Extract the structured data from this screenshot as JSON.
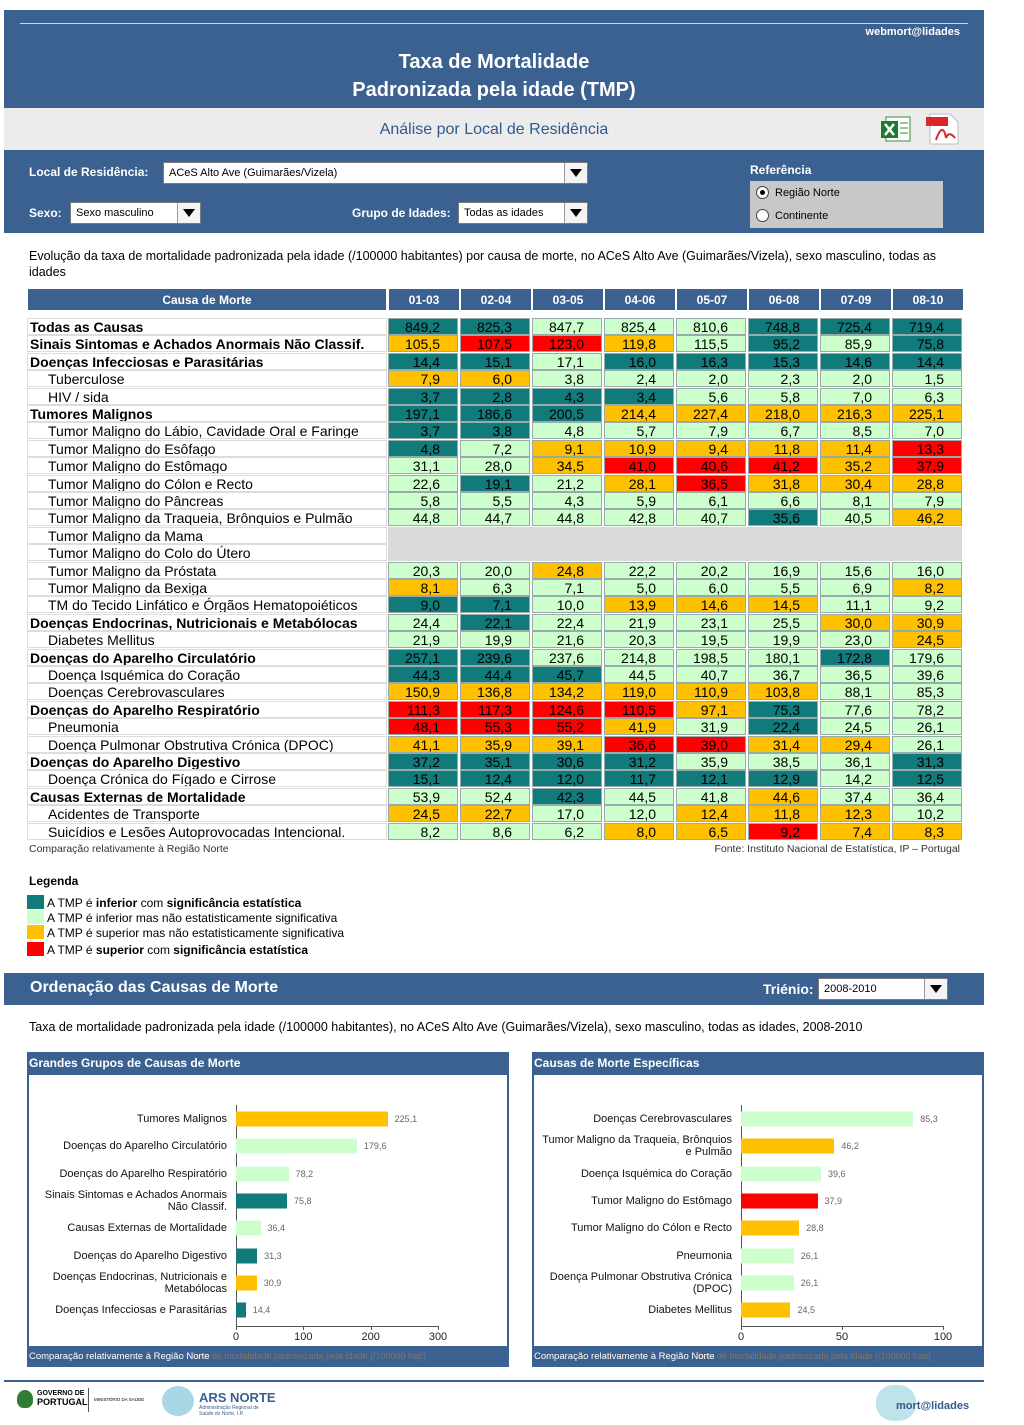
{
  "header": {
    "email": "webmort@lidades",
    "title_line1": "Taxa de Mortalidade",
    "title_line2": "Padronizada pela idade (TMP)",
    "subtitle": "Análise por Local de Residência"
  },
  "filters": {
    "local_label": "Local de Residência:",
    "local_value": "ACeS Alto Ave (Guimarães/Vizela)",
    "sexo_label": "Sexo:",
    "sexo_value": "Sexo masculino",
    "idades_label": "Grupo de Idades:",
    "idades_value": "Todas as idades",
    "referencia_label": "Referência",
    "referencia_options": [
      {
        "label": "Região Norte",
        "checked": true
      },
      {
        "label": "Continente",
        "checked": false
      }
    ]
  },
  "table": {
    "description": "Evolução da taxa de mortalidade padronizada pela idade (/100000 habitantes) por causa de morte, no ACeS Alto Ave (Guimarães/Vizela), sexo masculino, todas as idades",
    "header": [
      "Causa de Morte",
      "01-03",
      "02-04",
      "03-05",
      "04-06",
      "05-07",
      "06-08",
      "07-09",
      "08-10"
    ],
    "rows": [
      {
        "name": "Todas as Causas",
        "values": [
          "849,2",
          "825,3",
          "847,7",
          "825,4",
          "810,6",
          "748,8",
          "725,4",
          "719,4"
        ],
        "colors": [
          "#117a7a",
          "#117a7a",
          "#ccffcc",
          "#ccffcc",
          "#ccffcc",
          "#117a7a",
          "#117a7a",
          "#117a7a"
        ]
      },
      {
        "name": "Sinais Sintomas e Achados Anormais Não Classif.",
        "values": [
          "105,5",
          "107,5",
          "123,0",
          "119,8",
          "115,5",
          "95,2",
          "85,9",
          "75,8"
        ],
        "colors": [
          "#ffc000",
          "#ff0000",
          "#ff0000",
          "#ffc000",
          "#ccffcc",
          "#117a7a",
          "#ccffcc",
          "#117a7a"
        ]
      },
      {
        "name": "Doenças Infecciosas e Parasitárias",
        "values": [
          "14,4",
          "15,1",
          "17,1",
          "16,0",
          "16,3",
          "15,3",
          "14,6",
          "14,4"
        ],
        "colors": [
          "#117a7a",
          "#117a7a",
          "#ccffcc",
          "#117a7a",
          "#117a7a",
          "#117a7a",
          "#117a7a",
          "#117a7a"
        ],
        "children": [
          {
            "name": "Tuberculose",
            "values": [
              "7,9",
              "6,0",
              "3,8",
              "2,4",
              "2,0",
              "2,3",
              "2,0",
              "1,5"
            ],
            "colors": [
              "#ffc000",
              "#ffc000",
              "#ccffcc",
              "#ccffcc",
              "#ccffcc",
              "#ccffcc",
              "#ccffcc",
              "#ccffcc"
            ]
          },
          {
            "name": "HIV / sida",
            "values": [
              "3,7",
              "2,8",
              "4,3",
              "3,4",
              "5,6",
              "5,8",
              "7,0",
              "6,3"
            ],
            "colors": [
              "#117a7a",
              "#117a7a",
              "#117a7a",
              "#117a7a",
              "#ccffcc",
              "#ccffcc",
              "#ccffcc",
              "#ccffcc"
            ]
          }
        ]
      },
      {
        "name": "Tumores Malignos",
        "values": [
          "197,1",
          "186,6",
          "200,5",
          "214,4",
          "227,4",
          "218,0",
          "216,3",
          "225,1"
        ],
        "colors": [
          "#117a7a",
          "#117a7a",
          "#117a7a",
          "#ffc000",
          "#ffc000",
          "#ffc000",
          "#ffc000",
          "#ffc000"
        ],
        "children": [
          {
            "name": "Tumor Maligno do Lábio, Cavidade Oral e Faringe",
            "values": [
              "3,7",
              "3,8",
              "4,8",
              "5,7",
              "7,9",
              "6,7",
              "8,5",
              "7,0"
            ],
            "colors": [
              "#117a7a",
              "#117a7a",
              "#ccffcc",
              "#ccffcc",
              "#ccffcc",
              "#ccffcc",
              "#ccffcc",
              "#ccffcc"
            ]
          },
          {
            "name": "Tumor Maligno do Esôfago",
            "values": [
              "4,8",
              "7,2",
              "9,1",
              "10,9",
              "9,4",
              "11,8",
              "11,4",
              "13,3"
            ],
            "colors": [
              "#117a7a",
              "#ccffcc",
              "#ffc000",
              "#ffc000",
              "#ffc000",
              "#ffc000",
              "#ffc000",
              "#ff0000"
            ]
          },
          {
            "name": "Tumor Maligno do Estômago",
            "values": [
              "31,1",
              "28,0",
              "34,5",
              "41,0",
              "40,6",
              "41,2",
              "35,2",
              "37,9"
            ],
            "colors": [
              "#ccffcc",
              "#ccffcc",
              "#ffc000",
              "#ff0000",
              "#ff0000",
              "#ff0000",
              "#ffc000",
              "#ff0000"
            ]
          },
          {
            "name": "Tumor Maligno do Cólon e Recto",
            "values": [
              "22,6",
              "19,1",
              "21,2",
              "28,1",
              "36,5",
              "31,8",
              "30,4",
              "28,8"
            ],
            "colors": [
              "#ccffcc",
              "#117a7a",
              "#ccffcc",
              "#ffc000",
              "#ff0000",
              "#ffc000",
              "#ffc000",
              "#ffc000"
            ]
          },
          {
            "name": "Tumor Maligno do Pâncreas",
            "values": [
              "5,8",
              "5,5",
              "4,3",
              "5,9",
              "6,1",
              "6,6",
              "8,1",
              "7,9"
            ],
            "colors": [
              "#ccffcc",
              "#ccffcc",
              "#ccffcc",
              "#ccffcc",
              "#ccffcc",
              "#ccffcc",
              "#ccffcc",
              "#ccffcc"
            ]
          },
          {
            "name": "Tumor Maligno da Traqueia, Brônquios e Pulmão",
            "values": [
              "44,8",
              "44,7",
              "44,8",
              "42,8",
              "40,7",
              "35,6",
              "40,5",
              "46,2"
            ],
            "colors": [
              "#ccffcc",
              "#ccffcc",
              "#ccffcc",
              "#ccffcc",
              "#ccffcc",
              "#117a7a",
              "#ccffcc",
              "#ffc000"
            ]
          },
          {
            "name": "Tumor Maligno da Mama",
            "values": [
              null,
              null,
              null,
              null,
              null,
              null,
              null,
              null
            ]
          },
          {
            "name": "Tumor Maligno do Colo do Útero",
            "values": [
              null,
              null,
              null,
              null,
              null,
              null,
              null,
              null
            ]
          },
          {
            "name": "Tumor Maligno da Próstata",
            "values": [
              "20,3",
              "20,0",
              "24,8",
              "22,2",
              "20,2",
              "16,9",
              "15,6",
              "16,0"
            ],
            "colors": [
              "#ccffcc",
              "#ccffcc",
              "#ffc000",
              "#ccffcc",
              "#ccffcc",
              "#ccffcc",
              "#ccffcc",
              "#ccffcc"
            ]
          },
          {
            "name": "Tumor Maligno da Bexiga",
            "values": [
              "8,1",
              "6,3",
              "7,1",
              "5,0",
              "6,0",
              "5,5",
              "6,9",
              "8,2"
            ],
            "colors": [
              "#ffc000",
              "#ccffcc",
              "#ccffcc",
              "#ccffcc",
              "#ccffcc",
              "#ccffcc",
              "#ccffcc",
              "#ffc000"
            ]
          },
          {
            "name": "TM do Tecido Linfático e Órgãos Hematopoiéticos",
            "values": [
              "9,0",
              "7,1",
              "10,0",
              "13,9",
              "14,6",
              "14,5",
              "11,1",
              "9,2"
            ],
            "colors": [
              "#117a7a",
              "#117a7a",
              "#ccffcc",
              "#ffc000",
              "#ffc000",
              "#ffc000",
              "#ccffcc",
              "#ccffcc"
            ]
          }
        ]
      },
      {
        "name": "Doenças Endocrinas, Nutricionais e Metabólocas",
        "values": [
          "24,4",
          "22,1",
          "22,4",
          "21,9",
          "23,1",
          "25,5",
          "30,0",
          "30,9"
        ],
        "colors": [
          "#ccffcc",
          "#117a7a",
          "#ccffcc",
          "#ccffcc",
          "#ccffcc",
          "#ccffcc",
          "#ffc000",
          "#ffc000"
        ],
        "children": [
          {
            "name": "Diabetes Mellitus",
            "values": [
              "21,9",
              "19,9",
              "21,6",
              "20,3",
              "19,5",
              "19,9",
              "23,0",
              "24,5"
            ],
            "colors": [
              "#ccffcc",
              "#ccffcc",
              "#ccffcc",
              "#ccffcc",
              "#ccffcc",
              "#ccffcc",
              "#ccffcc",
              "#ffc000"
            ]
          }
        ]
      },
      {
        "name": "Doenças do Aparelho Circulatório",
        "values": [
          "257,1",
          "239,6",
          "237,6",
          "214,8",
          "198,5",
          "180,1",
          "172,8",
          "179,6"
        ],
        "colors": [
          "#117a7a",
          "#117a7a",
          "#ccffcc",
          "#ccffcc",
          "#ccffcc",
          "#ccffcc",
          "#117a7a",
          "#ccffcc"
        ],
        "children": [
          {
            "name": "Doença Isquémica do Coração",
            "values": [
              "44,3",
              "44,4",
              "45,7",
              "44,5",
              "40,7",
              "36,7",
              "36,5",
              "39,6"
            ],
            "colors": [
              "#117a7a",
              "#117a7a",
              "#117a7a",
              "#ccffcc",
              "#ccffcc",
              "#ccffcc",
              "#ccffcc",
              "#ccffcc"
            ]
          },
          {
            "name": "Doenças Cerebrovasculares",
            "values": [
              "150,9",
              "136,8",
              "134,2",
              "119,0",
              "110,9",
              "103,8",
              "88,1",
              "85,3"
            ],
            "colors": [
              "#ffc000",
              "#ffc000",
              "#ffc000",
              "#ffc000",
              "#ffc000",
              "#ffc000",
              "#ccffcc",
              "#ccffcc"
            ]
          }
        ]
      },
      {
        "name": "Doenças do Aparelho Respiratório",
        "values": [
          "111,3",
          "117,3",
          "124,6",
          "110,5",
          "97,1",
          "75,3",
          "77,6",
          "78,2"
        ],
        "colors": [
          "#ff0000",
          "#ff0000",
          "#ff0000",
          "#ff0000",
          "#ffc000",
          "#117a7a",
          "#ccffcc",
          "#ccffcc"
        ],
        "children": [
          {
            "name": "Pneumonia",
            "values": [
              "48,1",
              "55,3",
              "55,2",
              "41,9",
              "31,9",
              "22,4",
              "24,5",
              "26,1"
            ],
            "colors": [
              "#ff0000",
              "#ff0000",
              "#ff0000",
              "#ffc000",
              "#ccffcc",
              "#117a7a",
              "#ccffcc",
              "#ccffcc"
            ]
          },
          {
            "name": "Doença Pulmonar Obstrutiva Crónica (DPOC)",
            "values": [
              "41,1",
              "35,9",
              "39,1",
              "36,6",
              "39,0",
              "31,4",
              "29,4",
              "26,1"
            ],
            "colors": [
              "#ffc000",
              "#ffc000",
              "#ffc000",
              "#ff0000",
              "#ff0000",
              "#ffc000",
              "#ffc000",
              "#ccffcc"
            ]
          }
        ]
      },
      {
        "name": "Doenças do Aparelho Digestivo",
        "values": [
          "37,2",
          "35,1",
          "30,6",
          "31,2",
          "35,9",
          "38,5",
          "36,1",
          "31,3"
        ],
        "colors": [
          "#117a7a",
          "#117a7a",
          "#117a7a",
          "#117a7a",
          "#ccffcc",
          "#ccffcc",
          "#ccffcc",
          "#117a7a"
        ],
        "children": [
          {
            "name": "Doença Crónica do Fígado e Cirrose",
            "values": [
              "15,1",
              "12,4",
              "12,0",
              "11,7",
              "12,1",
              "12,9",
              "14,2",
              "12,5"
            ],
            "colors": [
              "#117a7a",
              "#117a7a",
              "#117a7a",
              "#117a7a",
              "#117a7a",
              "#117a7a",
              "#ccffcc",
              "#117a7a"
            ]
          }
        ]
      },
      {
        "name": "Causas Externas de Mortalidade",
        "values": [
          "53,9",
          "52,4",
          "42,3",
          "44,5",
          "41,8",
          "44,6",
          "37,4",
          "36,4"
        ],
        "colors": [
          "#ccffcc",
          "#ccffcc",
          "#117a7a",
          "#ccffcc",
          "#ccffcc",
          "#ffc000",
          "#ccffcc",
          "#ccffcc"
        ],
        "children": [
          {
            "name": "Acidentes de Transporte",
            "values": [
              "24,5",
              "22,7",
              "17,0",
              "12,0",
              "12,4",
              "11,8",
              "12,3",
              "10,2"
            ],
            "colors": [
              "#ffc000",
              "#ffc000",
              "#ccffcc",
              "#ccffcc",
              "#ffc000",
              "#ffc000",
              "#ffc000",
              "#ccffcc"
            ]
          },
          {
            "name": "Suicídios e Lesões Autoprovocadas Intencional.",
            "values": [
              "8,2",
              "8,6",
              "6,2",
              "8,0",
              "6,5",
              "9,2",
              "7,4",
              "8,3"
            ],
            "colors": [
              "#ccffcc",
              "#ccffcc",
              "#ccffcc",
              "#ffc000",
              "#ffc000",
              "#ff0000",
              "#ffc000",
              "#ffc000"
            ]
          }
        ]
      }
    ],
    "note_left": "Comparação relativamente à Região Norte",
    "note_right": "Fonte: Instituto Nacional de Estatística, IP – Portugal"
  },
  "legend": {
    "title": "Legenda",
    "items": [
      {
        "color": "#117a7a",
        "text": [
          "A TMP é ",
          "inferior",
          " com ",
          "significância estatística"
        ]
      },
      {
        "color": "#ccffcc",
        "text": [
          "A TMP é inferior mas não estatisticamente significativa"
        ]
      },
      {
        "color": "#ffc000",
        "text": [
          "A TMP é superior mas não estatisticamente significativa"
        ]
      },
      {
        "color": "#ff0000",
        "text": [
          "A TMP é ",
          "superior",
          " com ",
          "significância estatística"
        ]
      }
    ]
  },
  "ranking": {
    "title": "Ordenação das Causas de Morte",
    "trienio_label": "Triénio:",
    "trienio_value": "2008-2010",
    "description": "Taxa de mortalidade padronizada pela idade (/100000 habitantes), no ACeS Alto Ave (Guimarães/Vizela), sexo masculino, todas as idades, 2008-2010"
  },
  "chart_data": [
    {
      "type": "bar",
      "title": "Grandes Grupos de Causas de Morte",
      "categories": [
        "Tumores Malignos",
        "Doenças do Aparelho Circulatório",
        "Doenças do Aparelho Respiratório",
        "Sinais Sintomas e Achados Anormais Não Classif.",
        "Causas Externas de Mortalidade",
        "Doenças do Aparelho Digestivo",
        "Doenças Endocrinas, Nutricionais e Metabólocas",
        "Doenças Infecciosas e Parasitárias"
      ],
      "values": [
        225.1,
        179.6,
        78.2,
        75.8,
        36.4,
        31.3,
        30.9,
        14.4
      ],
      "value_labels": [
        "225,1",
        "179,6",
        "78,2",
        "75,8",
        "36,4",
        "31,3",
        "30,9",
        "14,4"
      ],
      "colors": [
        "#ffc000",
        "#ccffcc",
        "#ccffcc",
        "#117a7a",
        "#ccffcc",
        "#117a7a",
        "#ffc000",
        "#117a7a"
      ],
      "xlim": [
        0,
        300
      ],
      "xticks": [
        0,
        100,
        200,
        300
      ],
      "xlabel": "Taxa de mortalidade padronizada pela idade (/100000 hab)",
      "note": "Comparação relativamente à Região Norte"
    },
    {
      "type": "bar",
      "title": "Causas de Morte Específicas",
      "categories": [
        "Doenças Cerebrovasculares",
        "Tumor Maligno da Traqueia, Brônquios e Pulmão",
        "Doença Isquémica do Coração",
        "Tumor Maligno do Estômago",
        "Tumor Maligno do Cólon e Recto",
        "Pneumonia",
        "Doença Pulmonar Obstrutiva Crónica (DPOC)",
        "Diabetes Mellitus"
      ],
      "values": [
        85.3,
        46.2,
        39.6,
        37.9,
        28.8,
        26.1,
        26.1,
        24.5
      ],
      "value_labels": [
        "85,3",
        "46,2",
        "39,6",
        "37,9",
        "28,8",
        "26,1",
        "26,1",
        "24,5"
      ],
      "colors": [
        "#ccffcc",
        "#ffc000",
        "#ccffcc",
        "#ff0000",
        "#ffc000",
        "#ccffcc",
        "#ccffcc",
        "#ffc000"
      ],
      "xlim": [
        0,
        100
      ],
      "xticks": [
        0,
        50,
        100
      ],
      "xlabel": "Taxa de mortalidade padronizada pela idade (/100000 hab)",
      "note": "Comparação relativamente à Região Norte"
    }
  ],
  "footer": {
    "gov_line1": "GOVERNO DE",
    "gov_line2": "PORTUGAL",
    "ministry": "MINISTÉRIO DA SAÚDE",
    "ars": "ARS NORTE",
    "ars_sub": "Administração Regional de Saúde do Norte, I.P.",
    "brand": "mort@lidades"
  }
}
